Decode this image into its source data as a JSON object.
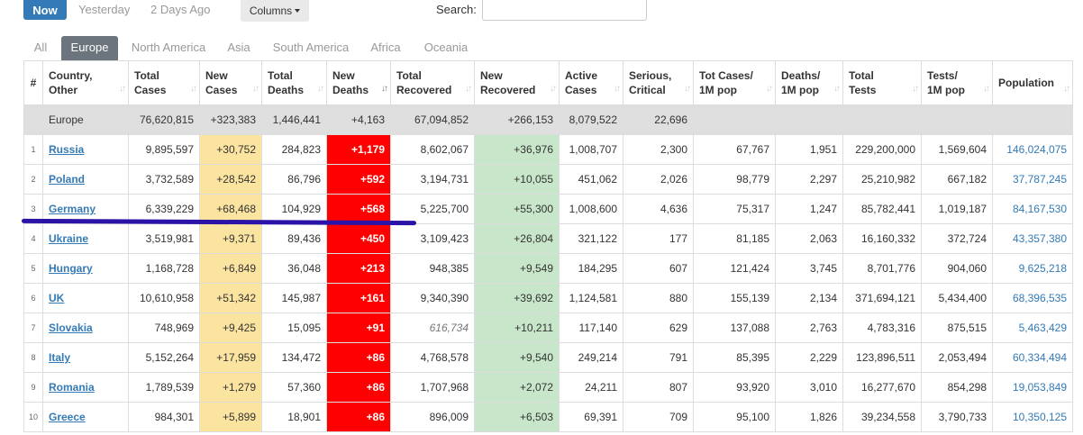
{
  "toolbar": {
    "now_label": "Now",
    "yesterday_label": "Yesterday",
    "two_days_label": "2 Days Ago",
    "columns_label": "Columns",
    "search_label": "Search:",
    "search_value": ""
  },
  "tabs": [
    "All",
    "Europe",
    "North America",
    "Asia",
    "South America",
    "Africa",
    "Oceania"
  ],
  "headers": {
    "idx": "#",
    "country": [
      "Country,",
      "Other"
    ],
    "total_cases": [
      "Total",
      "Cases"
    ],
    "new_cases": [
      "New",
      "Cases"
    ],
    "total_deaths": [
      "Total",
      "Deaths"
    ],
    "new_deaths": [
      "New",
      "Deaths"
    ],
    "total_recovered": [
      "Total",
      "Recovered"
    ],
    "new_recovered": [
      "New",
      "Recovered"
    ],
    "active_cases": [
      "Active",
      "Cases"
    ],
    "serious": [
      "Serious,",
      "Critical"
    ],
    "tot_cases_1m": [
      "Tot Cases/",
      "1M pop"
    ],
    "deaths_1m": [
      "Deaths/",
      "1M pop"
    ],
    "total_tests": [
      "Total",
      "Tests"
    ],
    "tests_1m": [
      "Tests/",
      "1M pop"
    ],
    "population": [
      "Population"
    ]
  },
  "region_row": {
    "country": "Europe",
    "total_cases": "76,620,815",
    "new_cases": "+323,383",
    "total_deaths": "1,446,441",
    "new_deaths": "+4,163",
    "total_recovered": "67,094,852",
    "new_recovered": "+266,153",
    "active_cases": "8,079,522",
    "serious": "22,696"
  },
  "rows": [
    {
      "idx": "1",
      "country": "Russia",
      "total_cases": "9,895,597",
      "new_cases": "+30,752",
      "total_deaths": "284,823",
      "new_deaths": "+1,179",
      "total_recovered": "8,602,067",
      "new_recovered": "+36,976",
      "active_cases": "1,008,707",
      "serious": "2,300",
      "tot_cases_1m": "67,767",
      "deaths_1m": "1,951",
      "total_tests": "229,200,000",
      "tests_1m": "1,569,604",
      "population": "146,024,075"
    },
    {
      "idx": "2",
      "country": "Poland",
      "total_cases": "3,732,589",
      "new_cases": "+28,542",
      "total_deaths": "86,796",
      "new_deaths": "+592",
      "total_recovered": "3,194,731",
      "new_recovered": "+10,055",
      "active_cases": "451,062",
      "serious": "2,026",
      "tot_cases_1m": "98,779",
      "deaths_1m": "2,297",
      "total_tests": "25,210,982",
      "tests_1m": "667,182",
      "population": "37,787,245"
    },
    {
      "idx": "3",
      "country": "Germany",
      "total_cases": "6,339,229",
      "new_cases": "+68,468",
      "total_deaths": "104,929",
      "new_deaths": "+568",
      "total_recovered": "5,225,700",
      "new_recovered": "+55,300",
      "active_cases": "1,008,600",
      "serious": "4,636",
      "tot_cases_1m": "75,317",
      "deaths_1m": "1,247",
      "total_tests": "85,782,441",
      "tests_1m": "1,019,187",
      "population": "84,167,530"
    },
    {
      "idx": "4",
      "country": "Ukraine",
      "total_cases": "3,519,981",
      "new_cases": "+9,371",
      "total_deaths": "89,436",
      "new_deaths": "+450",
      "total_recovered": "3,109,423",
      "new_recovered": "+26,804",
      "active_cases": "321,122",
      "serious": "177",
      "tot_cases_1m": "81,185",
      "deaths_1m": "2,063",
      "total_tests": "16,160,332",
      "tests_1m": "372,724",
      "population": "43,357,380"
    },
    {
      "idx": "5",
      "country": "Hungary",
      "total_cases": "1,168,728",
      "new_cases": "+6,849",
      "total_deaths": "36,048",
      "new_deaths": "+213",
      "total_recovered": "948,385",
      "new_recovered": "+9,549",
      "active_cases": "184,295",
      "serious": "607",
      "tot_cases_1m": "121,424",
      "deaths_1m": "3,745",
      "total_tests": "8,701,776",
      "tests_1m": "904,060",
      "population": "9,625,218"
    },
    {
      "idx": "6",
      "country": "UK",
      "total_cases": "10,610,958",
      "new_cases": "+51,342",
      "total_deaths": "145,987",
      "new_deaths": "+161",
      "total_recovered": "9,340,390",
      "new_recovered": "+39,692",
      "active_cases": "1,124,581",
      "serious": "880",
      "tot_cases_1m": "155,139",
      "deaths_1m": "2,134",
      "total_tests": "371,694,121",
      "tests_1m": "5,434,400",
      "population": "68,396,535"
    },
    {
      "idx": "7",
      "country": "Slovakia",
      "total_cases": "748,969",
      "new_cases": "+9,425",
      "total_deaths": "15,095",
      "new_deaths": "+91",
      "total_recovered": "616,734",
      "new_recovered": "+10,211",
      "active_cases": "117,140",
      "serious": "629",
      "tot_cases_1m": "137,088",
      "deaths_1m": "2,763",
      "total_tests": "4,783,316",
      "tests_1m": "875,515",
      "population": "5,463,429",
      "italic_recovered": true
    },
    {
      "idx": "8",
      "country": "Italy",
      "total_cases": "5,152,264",
      "new_cases": "+17,959",
      "total_deaths": "134,472",
      "new_deaths": "+86",
      "total_recovered": "4,768,578",
      "new_recovered": "+9,540",
      "active_cases": "249,214",
      "serious": "791",
      "tot_cases_1m": "85,395",
      "deaths_1m": "2,229",
      "total_tests": "123,896,511",
      "tests_1m": "2,053,494",
      "population": "60,334,494"
    },
    {
      "idx": "9",
      "country": "Romania",
      "total_cases": "1,789,539",
      "new_cases": "+1,279",
      "total_deaths": "57,360",
      "new_deaths": "+86",
      "total_recovered": "1,707,968",
      "new_recovered": "+2,072",
      "active_cases": "24,211",
      "serious": "807",
      "tot_cases_1m": "93,920",
      "deaths_1m": "3,010",
      "total_tests": "16,277,670",
      "tests_1m": "854,298",
      "population": "19,053,849"
    },
    {
      "idx": "10",
      "country": "Greece",
      "total_cases": "984,301",
      "new_cases": "+5,899",
      "total_deaths": "18,901",
      "new_deaths": "+86",
      "total_recovered": "896,009",
      "new_recovered": "+6,503",
      "active_cases": "69,391",
      "serious": "709",
      "tot_cases_1m": "95,100",
      "deaths_1m": "1,826",
      "total_tests": "39,234,558",
      "tests_1m": "3,790,733",
      "population": "10,350,125"
    }
  ],
  "colors": {
    "accent": "#337ab7",
    "new_cases_bg": "#fbe3a0",
    "new_deaths_bg": "#ff0000",
    "new_recovered_bg": "#c8e6c9",
    "annotation_line": "#2b13a8"
  }
}
